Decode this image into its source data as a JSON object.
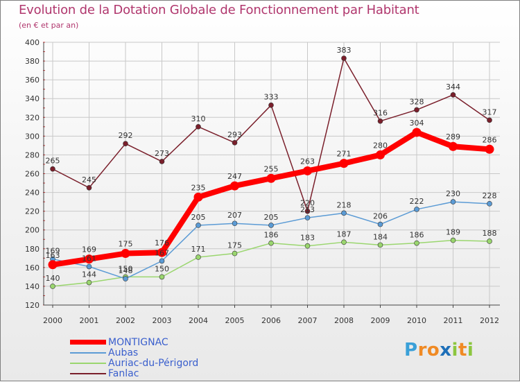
{
  "header": {
    "title": "Evolution de la Dotation Globale de Fonctionnement par Habitant",
    "subtitle": "(en € et par an)"
  },
  "colors": {
    "title": "#b0366d",
    "grid": "#c8c8c8",
    "axis": "#444444",
    "legend_text": "#3a5fcd"
  },
  "chart_data": {
    "type": "line",
    "title": "Evolution de la Dotation Globale de Fonctionnement par Habitant",
    "subtitle": "(en € et par an)",
    "xlabel": "",
    "ylabel": "",
    "x": [
      "2000",
      "2001",
      "2002",
      "2003",
      "2004",
      "2005",
      "2006",
      "2007",
      "2008",
      "2009",
      "2010",
      "2011",
      "2012"
    ],
    "ylim": [
      120,
      400
    ],
    "yticks": [
      120,
      140,
      160,
      180,
      200,
      220,
      240,
      260,
      280,
      300,
      320,
      340,
      360,
      380,
      400
    ],
    "grid": true,
    "legend_position": "bottom-left",
    "series": [
      {
        "name": "Fanlac",
        "color": "#7a1f2b",
        "values": [
          265,
          245,
          292,
          273,
          310,
          293,
          333,
          220,
          383,
          316,
          328,
          344,
          317
        ]
      },
      {
        "name": "Auriac-du-Périgord",
        "color": "#9ad66e",
        "values": [
          140,
          144,
          150,
          150,
          171,
          175,
          186,
          183,
          187,
          184,
          186,
          189,
          188
        ]
      },
      {
        "name": "Aubas",
        "color": "#5b9bd5",
        "values": [
          169,
          161,
          148,
          167,
          205,
          207,
          205,
          213,
          218,
          206,
          222,
          230,
          228
        ]
      },
      {
        "name": "MONTIGNAC",
        "color": "#ff0000",
        "values": [
          163,
          169,
          175,
          176,
          235,
          247,
          255,
          263,
          271,
          280,
          304,
          289,
          286
        ]
      }
    ]
  },
  "legend": {
    "items": [
      {
        "label": "MONTIGNAC",
        "color": "#ff0000"
      },
      {
        "label": "Aubas",
        "color": "#5b9bd5"
      },
      {
        "label": "Auriac-du-Périgord",
        "color": "#9ad66e"
      },
      {
        "label": "Fanlac",
        "color": "#7a1f2b"
      }
    ]
  },
  "logo": {
    "text": "Proxiti",
    "letters": [
      {
        "ch": "P",
        "color": "#3aa0d8"
      },
      {
        "ch": "r",
        "color": "#f08a24"
      },
      {
        "ch": "o",
        "color": "#f08a24"
      },
      {
        "ch": "x",
        "color": "#1d6fb8"
      },
      {
        "ch": "i",
        "color": "#8cc63f"
      },
      {
        "ch": "t",
        "color": "#f08a24"
      },
      {
        "ch": "i",
        "color": "#8cc63f"
      }
    ]
  }
}
